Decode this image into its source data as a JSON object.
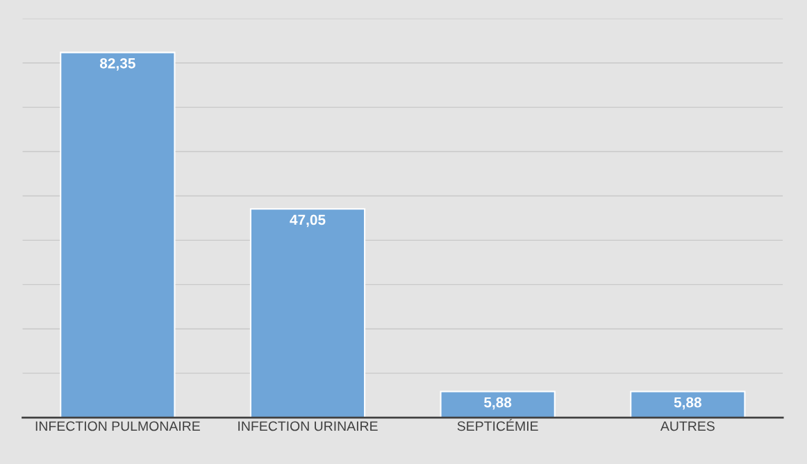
{
  "chart_data": {
    "type": "bar",
    "categories": [
      "INFECTION PULMONAIRE",
      "INFECTION URINAIRE",
      "SEPTICÉMIE",
      "AUTRES"
    ],
    "values": [
      82.35,
      47.05,
      5.88,
      5.88
    ],
    "value_labels": [
      "82,35",
      "47,05",
      "5,88",
      "5,88"
    ],
    "color": "#6fa5d8",
    "ylim": [
      0,
      90
    ],
    "yticks": [
      {
        "value": 0,
        "label": null
      },
      {
        "value": 10,
        "label": null
      },
      {
        "value": 20,
        "label": null
      },
      {
        "value": 30,
        "label": null
      },
      {
        "value": 40,
        "label": null
      },
      {
        "value": 50,
        "label": null
      },
      {
        "value": 60,
        "label": null
      },
      {
        "value": 70,
        "label": null
      },
      {
        "value": 80,
        "label": null
      },
      {
        "value": 90,
        "label": null
      }
    ],
    "tick_labels": "x",
    "grid": "y",
    "legend": false
  }
}
